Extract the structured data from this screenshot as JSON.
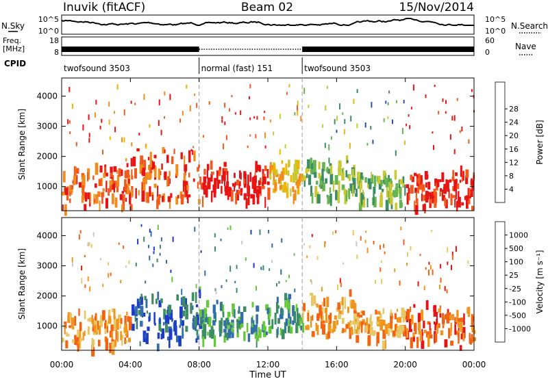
{
  "header": {
    "site": "Inuvik (fitACF)",
    "beam": "Beam 02",
    "date": "15/Nov/2014"
  },
  "strips": {
    "nsky_label": "N.Sky",
    "nsearch_label": "N.Search",
    "freq_label_1": "Freq.",
    "freq_label_2": "[MHz]",
    "nave_label": "Nave",
    "cpid_label": "CPID",
    "left_top_tick_1": "10^5",
    "left_bottom_tick_1": "10^0",
    "right_top_tick_1": "10^5",
    "right_bottom_tick_1": "10^0",
    "left_top_tick_2": "18",
    "left_bottom_tick_2": "8",
    "right_top_tick_2": "60",
    "right_bottom_tick_2": "0"
  },
  "cpid_segments": [
    {
      "label": "twofsound 3503",
      "start_h": 0,
      "end_h": 8
    },
    {
      "label": "normal (fast) 151",
      "start_h": 8,
      "end_h": 14
    },
    {
      "label": "twofsound 3503",
      "start_h": 14,
      "end_h": 24
    }
  ],
  "chart_data": [
    {
      "type": "heatmap",
      "name": "power",
      "xlabel": "",
      "ylabel": "Slant Range [km]",
      "xlim": [
        0,
        24
      ],
      "ylim": [
        200,
        4600
      ],
      "yticks": [
        1000,
        2000,
        3000,
        4000
      ],
      "colorbar": {
        "label": "Power [dB]",
        "ticks": [
          "4",
          "8",
          "12",
          "16",
          "20",
          "24",
          "28"
        ],
        "colors": [
          "#1414e6",
          "#2850b4",
          "#3c8c64",
          "#64b450",
          "#c8c832",
          "#f0b400",
          "#f08c1e",
          "#f05a1e",
          "#e61414"
        ]
      },
      "bands": [
        {
          "t0": 0,
          "t1": 4,
          "r0": 400,
          "r1": 1800,
          "level": 7
        },
        {
          "t0": 4,
          "t1": 8,
          "r0": 600,
          "r1": 2200,
          "level": 7
        },
        {
          "t0": 8,
          "t1": 12,
          "r0": 700,
          "r1": 1800,
          "level": 8
        },
        {
          "t0": 12,
          "t1": 14,
          "r0": 800,
          "r1": 2000,
          "level": 5
        },
        {
          "t0": 14,
          "t1": 17,
          "r0": 700,
          "r1": 2000,
          "level": 3
        },
        {
          "t0": 17,
          "t1": 20,
          "r0": 500,
          "r1": 1500,
          "level": 3
        },
        {
          "t0": 20,
          "t1": 24,
          "r0": 500,
          "r1": 1600,
          "level": 8
        }
      ]
    },
    {
      "type": "heatmap",
      "name": "velocity",
      "xlabel": "Time UT",
      "ylabel": "Slant Range [km]",
      "xlim": [
        0,
        24
      ],
      "ylim": [
        200,
        4600
      ],
      "xticks": [
        "00:00",
        "04:00",
        "08:00",
        "12:00",
        "16:00",
        "20:00",
        "00:00"
      ],
      "yticks": [
        1000,
        2000,
        3000,
        4000
      ],
      "colorbar": {
        "label": "Velocity [m s⁻¹]",
        "ticks": [
          "1000",
          "500",
          "100",
          "25",
          "-25",
          "-100",
          "-500",
          "-1000"
        ],
        "colors": [
          "#1e3cc8",
          "#326eaa",
          "#3c8c64",
          "#64c83c",
          "#c8c8c8",
          "#e6c864",
          "#f0961e",
          "#f06414",
          "#e61414"
        ]
      },
      "bands": [
        {
          "t0": 0,
          "t1": 4,
          "r0": 400,
          "r1": 1500,
          "level": 6
        },
        {
          "t0": 4,
          "t1": 8,
          "r0": 600,
          "r1": 2200,
          "level": 1
        },
        {
          "t0": 8,
          "t1": 12,
          "r0": 700,
          "r1": 1800,
          "level": 2
        },
        {
          "t0": 12,
          "t1": 14,
          "r0": 800,
          "r1": 2000,
          "level": 2
        },
        {
          "t0": 14,
          "t1": 17,
          "r0": 800,
          "r1": 2100,
          "level": 6
        },
        {
          "t0": 17,
          "t1": 20,
          "r0": 600,
          "r1": 1600,
          "level": 6
        },
        {
          "t0": 20,
          "t1": 24,
          "r0": 500,
          "r1": 1700,
          "level": 7
        }
      ]
    }
  ]
}
